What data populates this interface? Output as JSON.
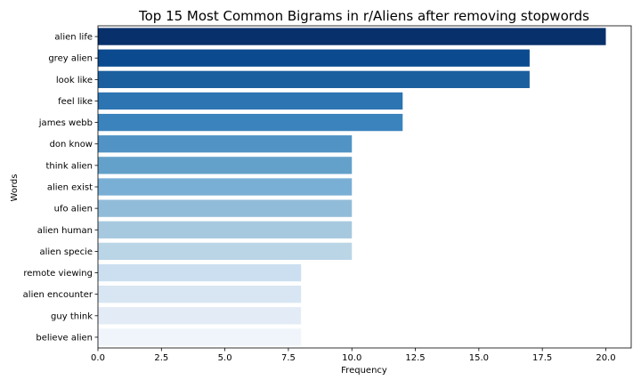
{
  "chart_data": {
    "type": "bar",
    "orientation": "horizontal",
    "title": "Top 15 Most Common Bigrams in r/Aliens after removing stopwords",
    "xlabel": "Frequency",
    "ylabel": "Words",
    "xlim": [
      0,
      21
    ],
    "xticks": [
      "0.0",
      "2.5",
      "5.0",
      "7.5",
      "10.0",
      "12.5",
      "15.0",
      "17.5",
      "20.0"
    ],
    "categories": [
      "alien life",
      "grey alien",
      "look like",
      "feel like",
      "james webb",
      "don know",
      "think alien",
      "alien exist",
      "ufo alien",
      "alien human",
      "alien specie",
      "remote viewing",
      "alien encounter",
      "guy think",
      "believe alien"
    ],
    "values": [
      20,
      17,
      17,
      12,
      12,
      10,
      10,
      10,
      10,
      10,
      10,
      8,
      8,
      8,
      8
    ],
    "colors": [
      "#08306b",
      "#0b4a8f",
      "#1c5f9f",
      "#2d74b2",
      "#3b83bd",
      "#5093c4",
      "#64a1ca",
      "#7aafd5",
      "#91bcd9",
      "#a7c9df",
      "#bad5e6",
      "#cbdff0",
      "#d8e5f2",
      "#e3ecf6",
      "#f0f5fb"
    ],
    "grid": false,
    "legend": false
  }
}
